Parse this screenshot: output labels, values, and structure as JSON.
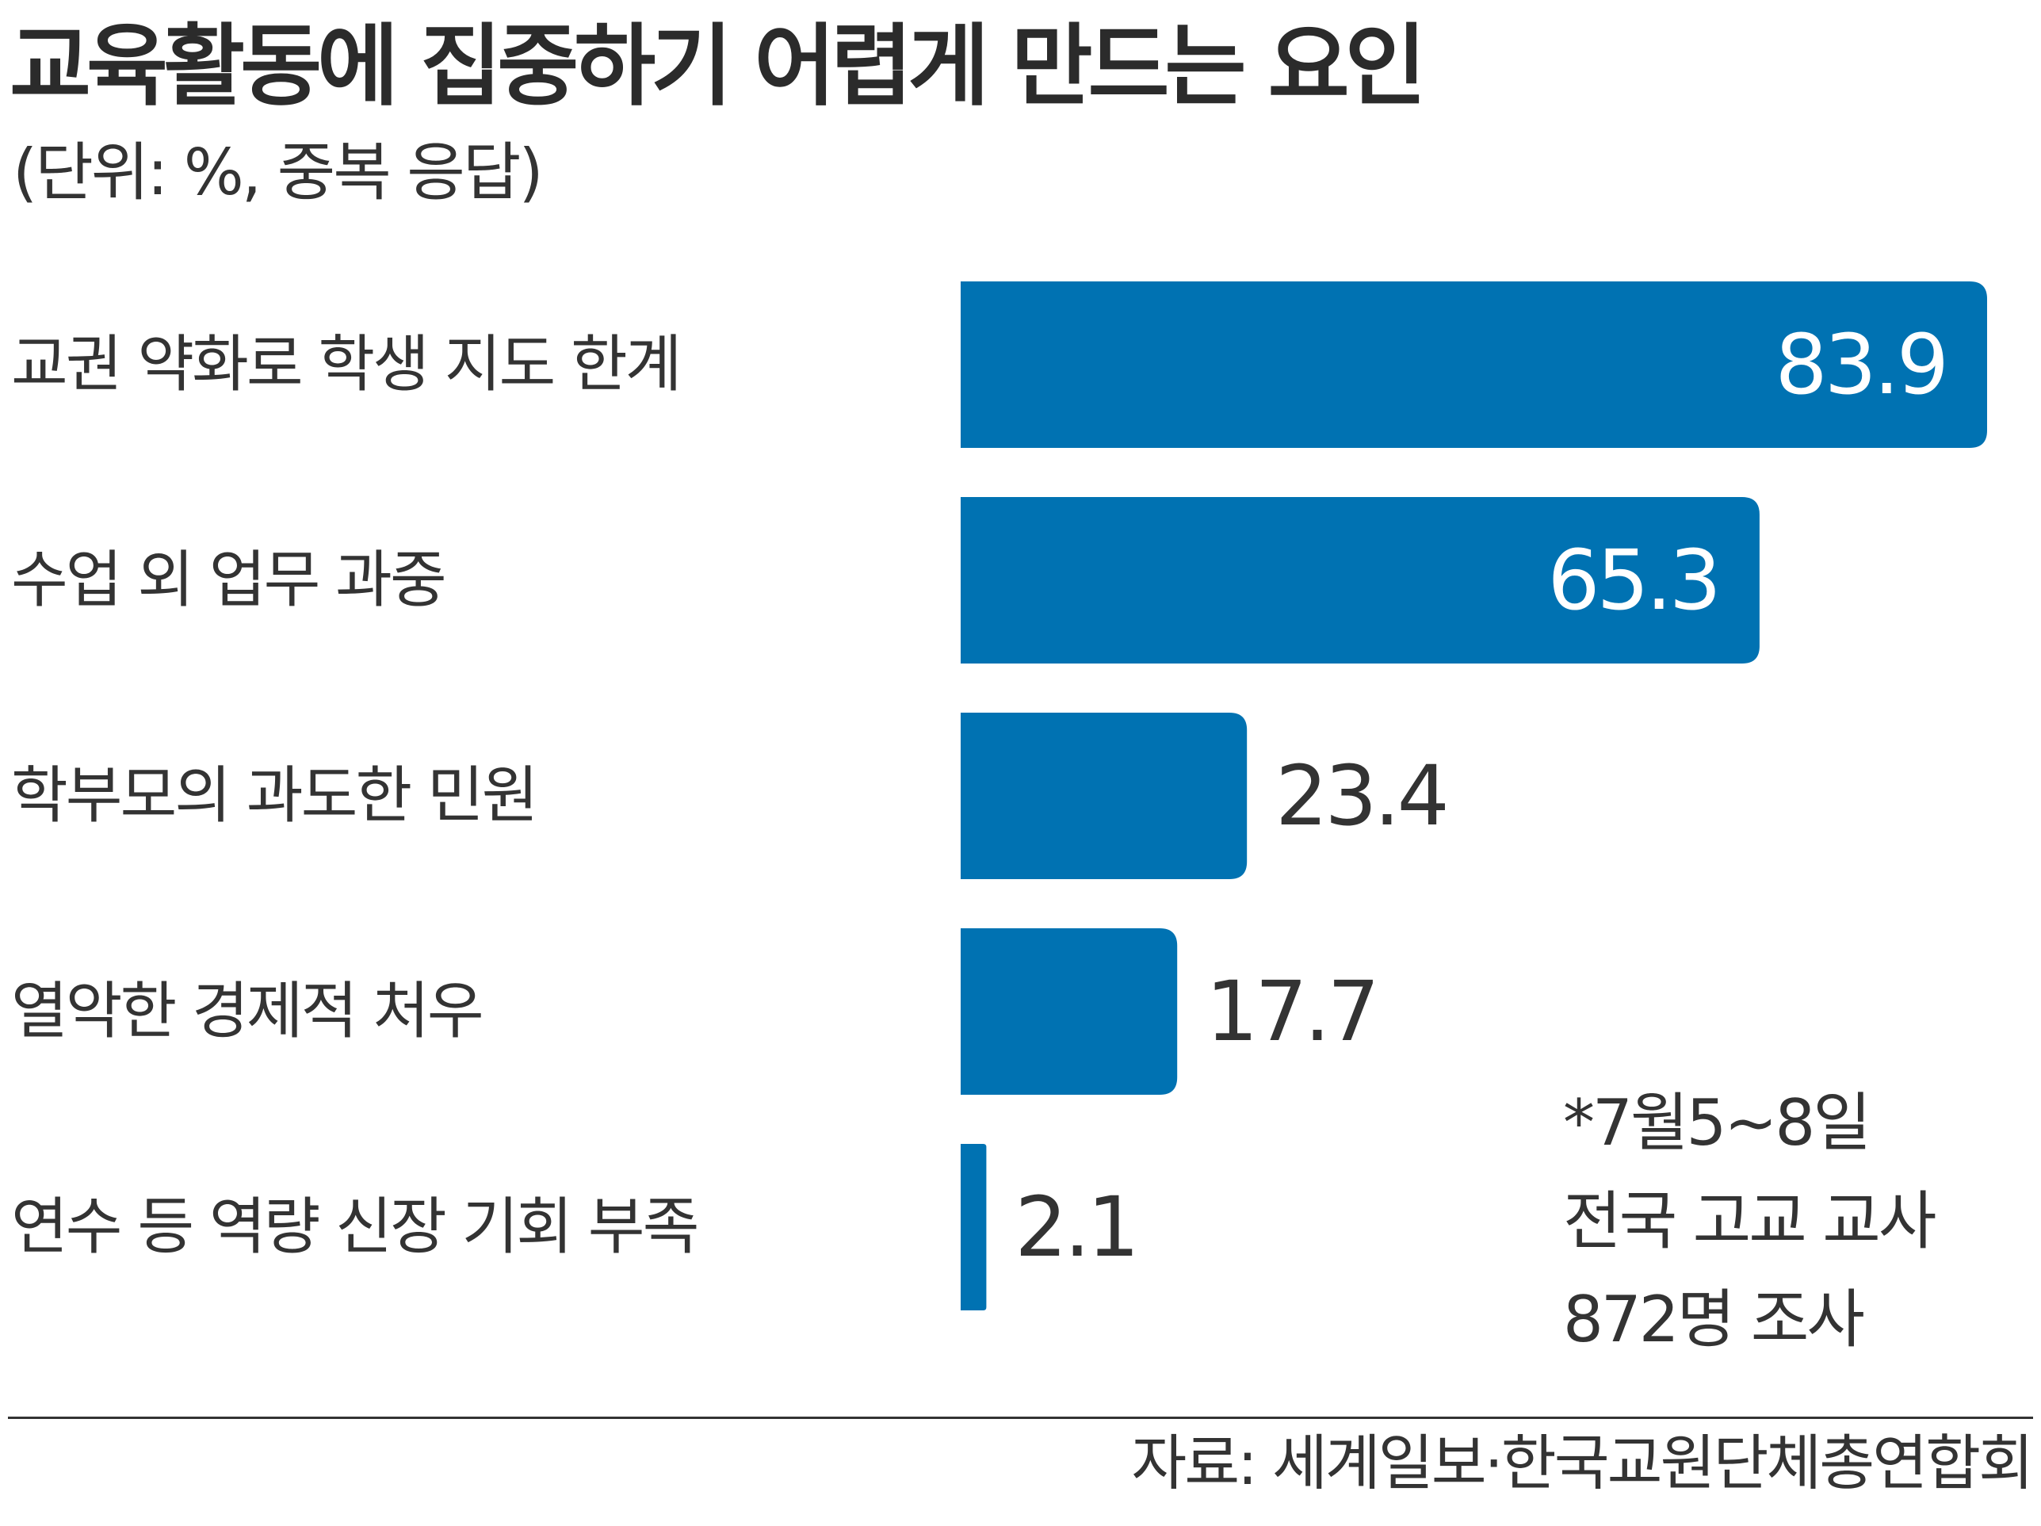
{
  "title": "교육활동에 집중하기 어렵게 만드는 요인",
  "subtitle": "(단위: %, 중복 응답)",
  "note_lines": [
    "*7월5~8일",
    "전국 고교 교사",
    "872명 조사"
  ],
  "source": "자료: 세계일보·한국교원단체총연합회",
  "colors": {
    "bar": "#0072b2",
    "label_inside": "#ffffff",
    "label_outside": "#333333",
    "text": "#333333"
  },
  "chart_data": {
    "type": "bar",
    "orientation": "horizontal",
    "title": "교육활동에 집중하기 어렵게 만드는 요인",
    "subtitle": "(단위: %, 중복 응답)",
    "categories": [
      "교권 약화로 학생 지도 한계",
      "수업 외 업무 과중",
      "학부모의 과도한 민원",
      "열악한 경제적 처우",
      "연수 등 역량 신장 기회 부족"
    ],
    "values": [
      83.9,
      65.3,
      23.4,
      17.7,
      2.1
    ],
    "value_labels": [
      "83.9",
      "65.3",
      "23.4",
      "17.7",
      "2.1"
    ],
    "xlim": [
      0,
      83.9
    ],
    "grid": false,
    "legend": "none"
  }
}
